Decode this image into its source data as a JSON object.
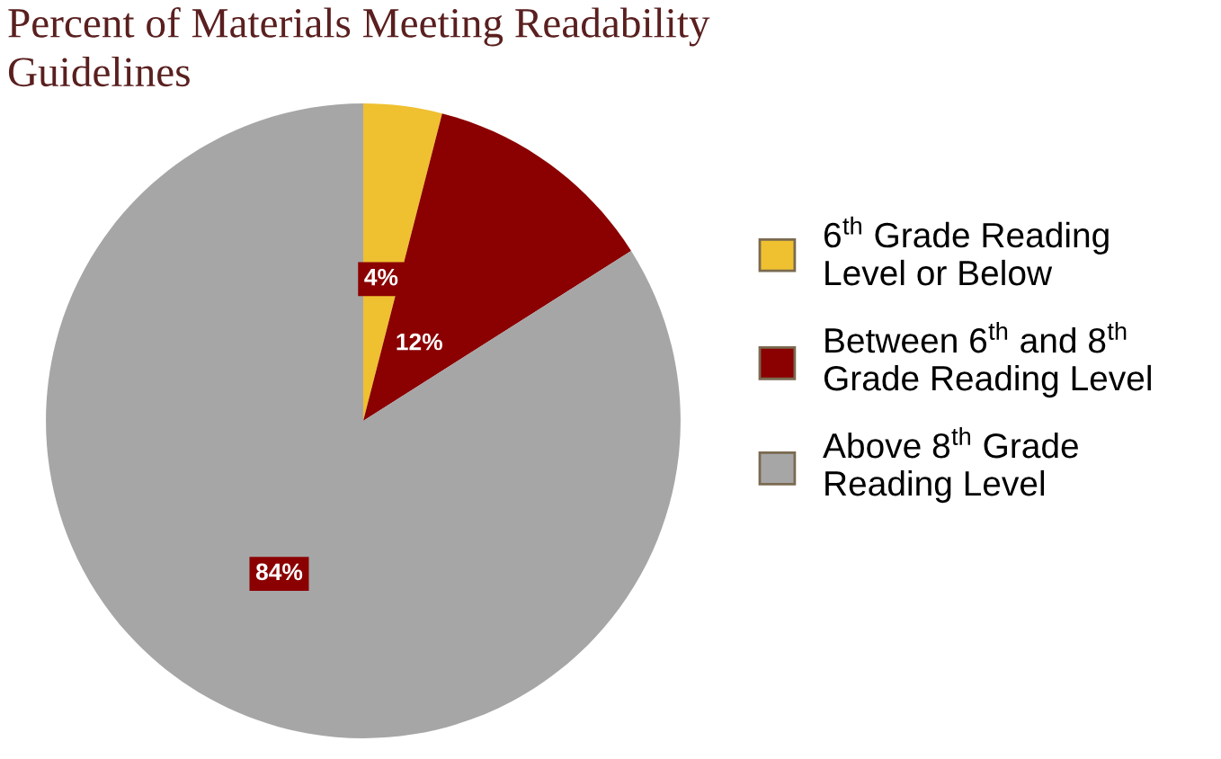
{
  "chart_data": {
    "type": "pie",
    "title": "Percent of Materials Meeting Readability\nGuidelines",
    "categories": [
      "6$^{th}$ Grade Reading\nLevel or Below",
      "Between 6$^{th}$ and 8$^{th}$\nGrade Reading Level",
      "Above 8$^{th}$ Grade\nReading Level"
    ],
    "values": [
      4,
      12,
      84
    ],
    "colors": [
      "#efc030",
      "#8b0000",
      "#a6a6a6"
    ],
    "value_labels": [
      "4%",
      "12%",
      "84%"
    ],
    "legend": "right"
  }
}
